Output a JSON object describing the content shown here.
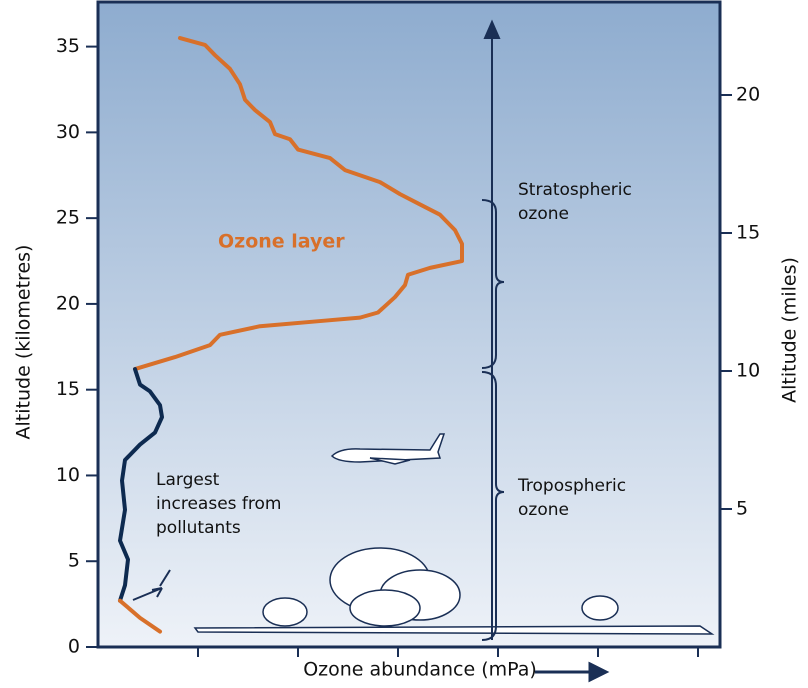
{
  "chart_data": {
    "type": "line",
    "y_label": "Altitude (kilometres)",
    "y2_label": "Altitude (miles)",
    "x_label": "Ozone abundance (mPa)",
    "xlim": [
      0,
      6.22
    ],
    "xticks": [
      1,
      2,
      3,
      4,
      5,
      6
    ],
    "ylim": [
      0,
      37.6
    ],
    "yticks": [
      0,
      5,
      10,
      15,
      20,
      25,
      30,
      35
    ],
    "y2lim": [
      0,
      23.37
    ],
    "y2ticks": [
      5,
      10,
      15,
      20
    ],
    "series": [
      {
        "color": "#d8702a",
        "x": [
          0.37,
          0.77,
          1.12,
          1.22,
          1.62,
          2.22,
          2.62,
          2.8,
          2.97,
          3.07,
          3.1,
          3.32,
          3.64,
          3.64,
          3.57,
          3.42,
          3.22,
          3.02,
          2.82,
          2.47,
          2.32,
          2.0,
          1.92,
          1.77,
          1.72,
          1.57,
          1.47,
          1.42,
          1.32,
          1.17,
          1.07,
          0.82
        ],
        "values": [
          16.2,
          16.9,
          17.6,
          18.2,
          18.7,
          19.0,
          19.2,
          19.5,
          20.4,
          21.1,
          21.7,
          22.1,
          22.5,
          23.5,
          24.3,
          25.2,
          25.8,
          26.4,
          27.1,
          27.8,
          28.5,
          29.0,
          29.6,
          29.9,
          30.6,
          31.3,
          31.9,
          32.8,
          33.7,
          34.5,
          35.1,
          35.5
        ]
      },
      {
        "color": "#0d2a50",
        "x": [
          0.37,
          0.42,
          0.52,
          0.62,
          0.64,
          0.57,
          0.42,
          0.27,
          0.24,
          0.27,
          0.22,
          0.3,
          0.27,
          0.22
        ],
        "values": [
          16.2,
          15.3,
          14.9,
          14.1,
          13.4,
          12.5,
          11.8,
          10.9,
          9.7,
          8.0,
          6.2,
          5.1,
          3.6,
          2.7
        ]
      },
      {
        "color": "#d8702a",
        "x": [
          0.22,
          0.42,
          0.62
        ],
        "values": [
          2.7,
          1.7,
          0.9
        ]
      }
    ],
    "annotations": [
      {
        "text": "Ozone layer"
      },
      {
        "lines": [
          "Largest",
          "increases from",
          "pollutants"
        ]
      },
      {
        "lines": [
          "Stratospheric",
          "ozone"
        ]
      },
      {
        "lines": [
          "Tropospheric",
          "ozone"
        ]
      }
    ]
  }
}
